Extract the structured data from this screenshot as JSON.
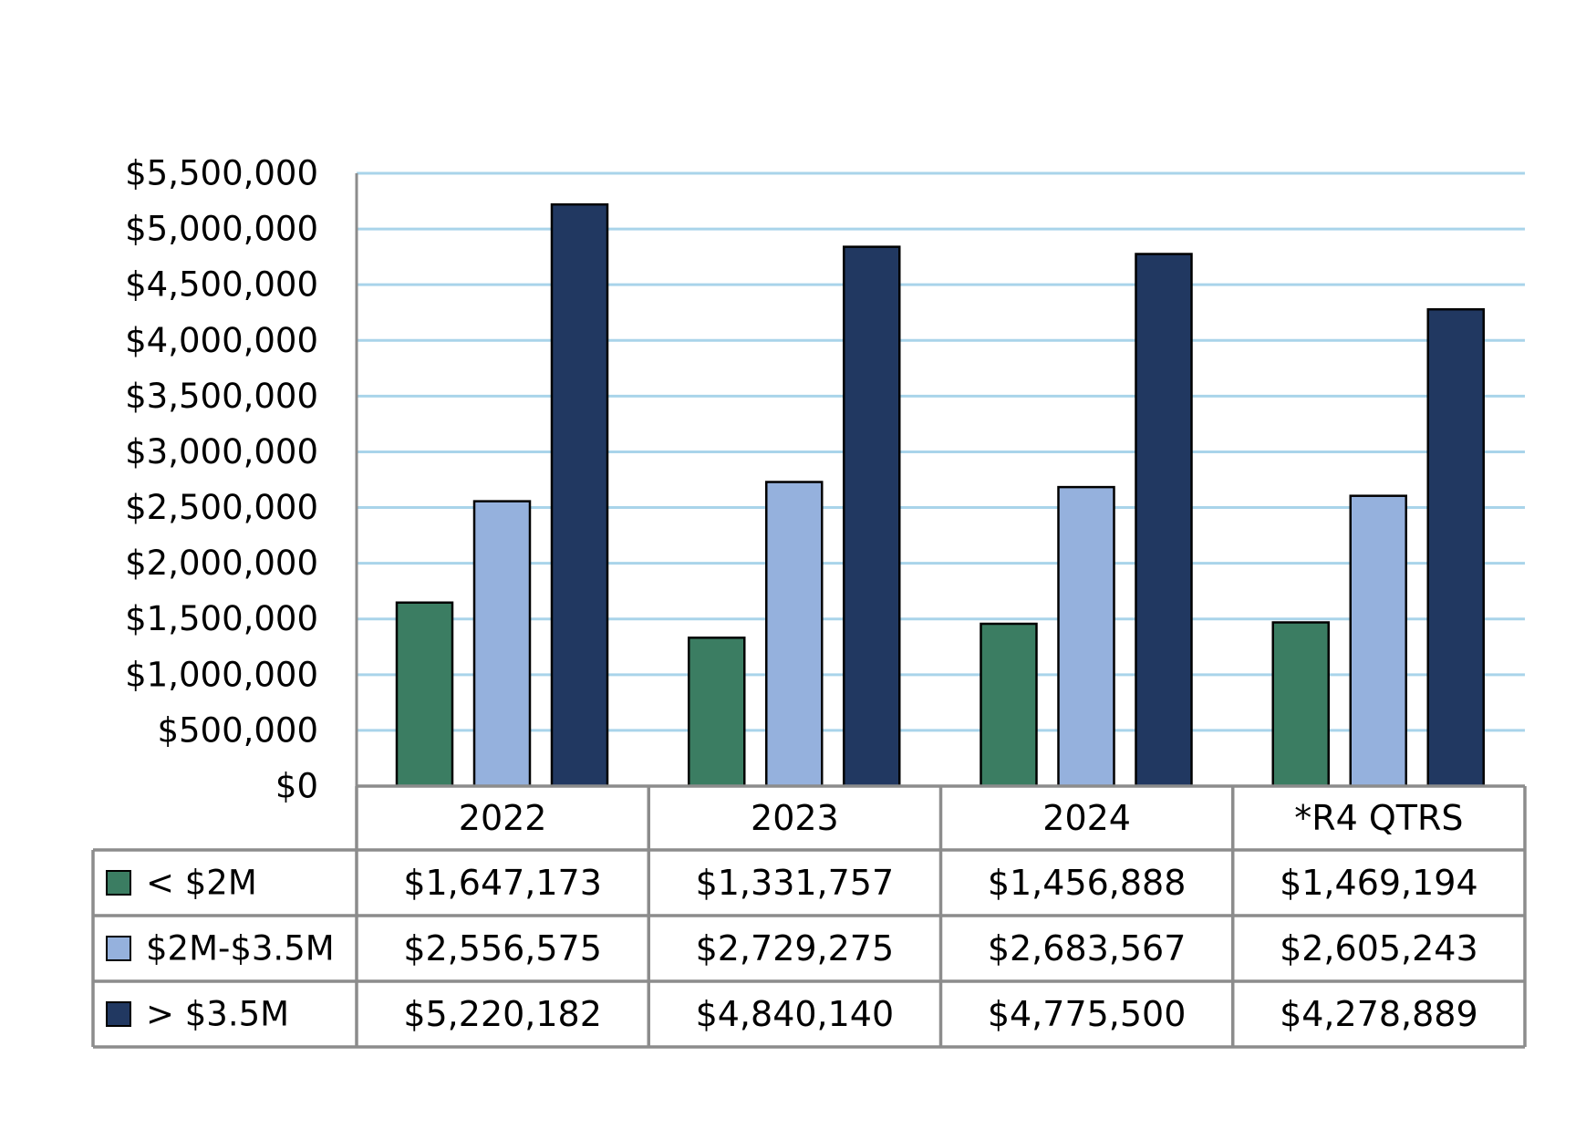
{
  "chart_data": {
    "type": "bar",
    "categories": [
      "2022",
      "2023",
      "2024",
      "*R4 QTRS"
    ],
    "series": [
      {
        "name": "< $2M",
        "color": "#3b7d62",
        "values": [
          1647173,
          1331757,
          1456888,
          1469194
        ],
        "value_labels": [
          "$1,647,173",
          "$1,331,757",
          "$1,456,888",
          "$1,469,194"
        ]
      },
      {
        "name": "$2M-$3.5M",
        "color": "#95b1dd",
        "values": [
          2556575,
          2729275,
          2683567,
          2605243
        ],
        "value_labels": [
          "$2,556,575",
          "$2,729,275",
          "$2,683,567",
          "$2,605,243"
        ]
      },
      {
        "name": "> $3.5M",
        "color": "#213861",
        "values": [
          5220182,
          4840140,
          4775500,
          4278889
        ],
        "value_labels": [
          "$5,220,182",
          "$4,840,140",
          "$4,775,500",
          "$4,278,889"
        ]
      }
    ],
    "ylim": [
      0,
      5500000
    ],
    "ystep": 500000,
    "ytick_labels": [
      "$0",
      "$500,000",
      "$1,000,000",
      "$1,500,000",
      "$2,000,000",
      "$2,500,000",
      "$3,000,000",
      "$3,500,000",
      "$4,000,000",
      "$4,500,000",
      "$5,000,000",
      "$5,500,000"
    ],
    "grid": true,
    "gridline_color": "#a9d4ea",
    "legend": "data-table-below",
    "title": "",
    "xlabel": "",
    "ylabel": ""
  }
}
